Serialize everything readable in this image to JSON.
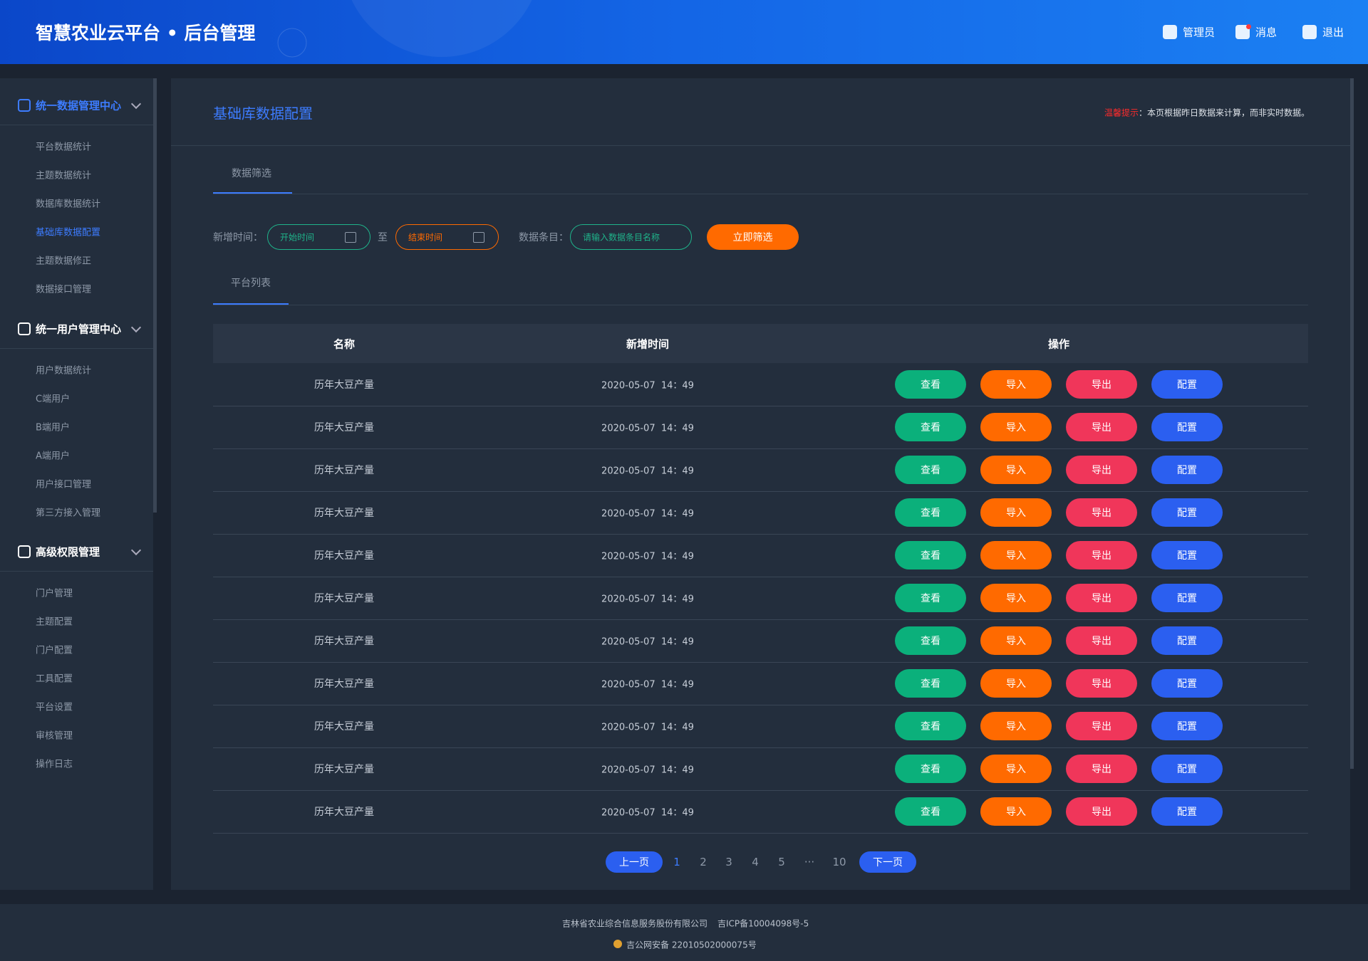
{
  "header": {
    "title": "智慧农业云平台 • 后台管理",
    "menu": [
      "管理员",
      "消息",
      "退出"
    ]
  },
  "sidebar": [
    {
      "title": "统一数据管理中心",
      "items": [
        "平台数据统计",
        "主题数据统计",
        "数据库数据统计",
        "基础库数据配置",
        "主题数据修正",
        "数据接口管理"
      ]
    },
    {
      "title": "统一用户管理中心",
      "items": [
        "用户数据统计",
        "C端用户",
        "B端用户",
        "A端用户",
        "用户接口管理",
        "第三方接入管理"
      ]
    },
    {
      "title": "高级权限管理",
      "items": [
        "门户管理",
        "主题配置",
        "门户配置",
        "工具配置",
        "平台设置",
        "审核管理",
        "操作日志"
      ]
    }
  ],
  "page": {
    "title": "基础库数据配置",
    "notice_label": "温馨提示",
    "notice_text": "：本页根据昨日数据来计算，而非实时数据。"
  },
  "filter": {
    "tab": "数据筛选",
    "time_label": "新增时间：",
    "start_placeholder": "开始时间",
    "to": "至",
    "end_placeholder": "结束时间",
    "item_label": "数据条目：",
    "item_placeholder": "请输入数据条目名称",
    "button": "立即筛选"
  },
  "table": {
    "tab": "平台列表",
    "columns": [
      "名称",
      "新增时间",
      "操作"
    ],
    "actions": [
      "查看",
      "导入",
      "导出",
      "配置"
    ],
    "rows": [
      [
        "历年大豆产量",
        "2020-05-07  14：49"
      ],
      [
        "历年大豆产量",
        "2020-05-07  14：49"
      ],
      [
        "历年大豆产量",
        "2020-05-07  14：49"
      ],
      [
        "历年大豆产量",
        "2020-05-07  14：49"
      ],
      [
        "历年大豆产量",
        "2020-05-07  14：49"
      ],
      [
        "历年大豆产量",
        "2020-05-07  14：49"
      ],
      [
        "历年大豆产量",
        "2020-05-07  14：49"
      ],
      [
        "历年大豆产量",
        "2020-05-07  14：49"
      ],
      [
        "历年大豆产量",
        "2020-05-07  14：49"
      ],
      [
        "历年大豆产量",
        "2020-05-07  14：49"
      ],
      [
        "历年大豆产量",
        "2020-05-07  14：49"
      ]
    ]
  },
  "pagination": {
    "prev": "上一页",
    "pages": [
      "1",
      "2",
      "3",
      "4",
      "5",
      "···",
      "10"
    ],
    "next": "下一页"
  },
  "footer": {
    "company": "吉林省农业综合信息服务股份有限公司",
    "icp": "吉ICP备10004098号-5",
    "police": "吉公网安备 22010502000075号"
  }
}
